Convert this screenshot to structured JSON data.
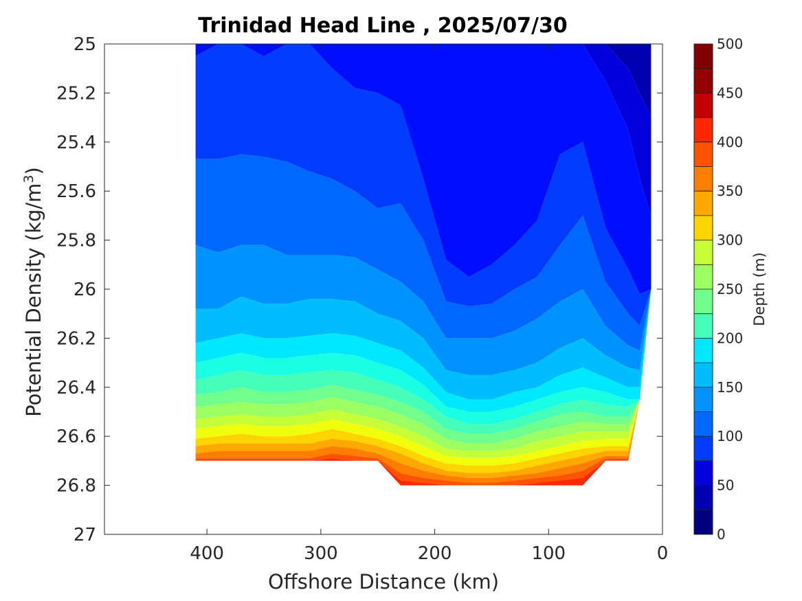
{
  "chart_data": {
    "type": "contour",
    "title": "Trinidad Head Line , 2025/07/30",
    "xlabel": "Offshore Distance (km)",
    "ylabel_main": "Potential Density (kg/m",
    "ylabel_sup": "3",
    "ylabel_close": ")",
    "xlim": [
      490,
      0
    ],
    "xticks": [
      400,
      300,
      200,
      100,
      0
    ],
    "xtick_labels": [
      "400",
      "300",
      "200",
      "100",
      "0"
    ],
    "ylim": [
      25,
      27
    ],
    "y_reversed": true,
    "yticks": [
      25,
      25.2,
      25.4,
      25.6,
      25.8,
      26,
      26.2,
      26.4,
      26.6,
      26.8,
      27
    ],
    "ytick_labels": [
      "25",
      "25.2",
      "25.4",
      "25.6",
      "25.8",
      "26",
      "26.2",
      "26.4",
      "26.6",
      "26.8",
      "27"
    ],
    "colorbar": {
      "label": "Depth (m)",
      "range": [
        0,
        500
      ],
      "ticks": [
        0,
        50,
        100,
        150,
        200,
        250,
        300,
        350,
        400,
        450,
        500
      ],
      "tick_labels": [
        "0",
        "50",
        "100",
        "150",
        "200",
        "250",
        "300",
        "350",
        "400",
        "450",
        "500"
      ],
      "levels": 20,
      "colormap": "jet"
    },
    "grid": false,
    "level_colors": [
      "#00007f",
      "#0000ae",
      "#0000dc",
      "#000dff",
      "#003cff",
      "#0067ff",
      "#0092ff",
      "#00bdff",
      "#00e8ff",
      "#1affe3",
      "#45ffb8",
      "#70ff8d",
      "#9bff62",
      "#c6ff37",
      "#f1ff0c",
      "#ffd400",
      "#ffa900",
      "#ff7e00",
      "#ff5300",
      "#ff2800",
      "#ef0000",
      "#c10000",
      "#930000",
      "#7f0000"
    ],
    "profile_x": [
      410,
      390,
      370,
      350,
      330,
      310,
      290,
      270,
      250,
      230,
      210,
      190,
      170,
      150,
      130,
      110,
      90,
      70,
      50,
      30,
      20,
      10
    ],
    "bottom_density": [
      26.7,
      26.7,
      26.7,
      26.7,
      26.7,
      26.7,
      26.7,
      26.7,
      26.7,
      26.8,
      26.8,
      26.8,
      26.8,
      26.8,
      26.8,
      26.8,
      26.8,
      26.8,
      26.7,
      26.7,
      26.45,
      26.0
    ],
    "isopycnal_depths": {
      "levels": [
        50,
        75,
        100,
        125,
        150,
        175,
        200,
        225,
        250,
        275,
        300,
        325,
        350,
        375,
        400,
        425,
        450,
        475
      ],
      "density": [
        [
          25.0,
          25.0,
          25.0,
          25.0,
          25.0,
          25.0,
          25.0,
          25.0,
          25.0,
          25.05,
          25.05,
          25.3,
          25.38,
          25.32,
          25.2,
          25.1,
          25.0,
          25.0,
          25.0,
          25.1,
          25.2,
          25.3
        ],
        [
          25.0,
          25.0,
          25.0,
          25.0,
          25.0,
          25.0,
          25.0,
          25.0,
          25.0,
          25.0,
          25.0,
          25.0,
          25.0,
          25.0,
          25.0,
          25.0,
          25.0,
          25.0,
          25.15,
          25.35,
          25.55,
          25.7
        ],
        [
          25.05,
          25.0,
          24.98,
          25.05,
          25.0,
          24.98,
          25.1,
          25.18,
          25.2,
          25.25,
          25.55,
          25.88,
          25.95,
          25.9,
          25.82,
          25.72,
          25.45,
          25.4,
          25.75,
          25.92,
          26.02,
          26.05
        ],
        [
          25.47,
          25.47,
          25.45,
          25.46,
          25.48,
          25.52,
          25.55,
          25.6,
          25.67,
          25.65,
          25.8,
          26.05,
          26.07,
          26.06,
          26.0,
          25.95,
          25.82,
          25.7,
          25.97,
          26.1,
          26.15,
          26.15
        ],
        [
          25.82,
          25.85,
          25.82,
          25.82,
          25.86,
          25.86,
          25.86,
          25.87,
          25.92,
          25.97,
          26.05,
          26.2,
          26.2,
          26.2,
          26.17,
          26.12,
          26.05,
          26.0,
          26.15,
          26.23,
          26.25,
          26.25
        ],
        [
          26.08,
          26.08,
          26.03,
          26.06,
          26.06,
          26.04,
          26.04,
          26.05,
          26.1,
          26.13,
          26.2,
          26.33,
          26.35,
          26.35,
          26.33,
          26.3,
          26.24,
          26.2,
          26.27,
          26.32,
          26.33,
          26.33
        ],
        [
          26.22,
          26.2,
          26.18,
          26.2,
          26.2,
          26.19,
          26.18,
          26.19,
          26.22,
          26.25,
          26.32,
          26.42,
          26.45,
          26.45,
          26.42,
          26.4,
          26.35,
          26.32,
          26.36,
          26.4,
          26.4,
          26.4
        ],
        [
          26.3,
          26.28,
          26.26,
          26.28,
          26.28,
          26.27,
          26.26,
          26.27,
          26.3,
          26.33,
          26.39,
          26.48,
          26.5,
          26.5,
          26.48,
          26.45,
          26.42,
          26.4,
          26.42,
          26.45,
          26.45,
          26.45
        ],
        [
          26.37,
          26.35,
          26.33,
          26.35,
          26.35,
          26.34,
          26.33,
          26.34,
          26.37,
          26.4,
          26.45,
          26.52,
          26.55,
          26.55,
          26.53,
          26.5,
          26.47,
          26.45,
          26.47,
          26.48,
          26.48,
          26.48
        ],
        [
          26.43,
          26.42,
          26.4,
          26.42,
          26.42,
          26.41,
          26.39,
          26.41,
          26.43,
          26.46,
          26.5,
          26.57,
          26.59,
          26.59,
          26.57,
          26.54,
          26.51,
          26.5,
          26.52,
          26.52,
          26.52,
          26.52
        ],
        [
          26.48,
          26.47,
          26.46,
          26.47,
          26.47,
          26.46,
          26.44,
          26.46,
          26.48,
          26.51,
          26.55,
          26.61,
          26.63,
          26.63,
          26.61,
          26.58,
          26.56,
          26.54,
          26.55,
          26.55,
          26.55,
          26.55
        ],
        [
          26.53,
          26.52,
          26.51,
          26.52,
          26.52,
          26.51,
          26.49,
          26.51,
          26.53,
          26.56,
          26.6,
          26.65,
          26.66,
          26.66,
          26.65,
          26.62,
          26.6,
          26.58,
          26.58,
          26.58,
          26.58,
          26.58
        ],
        [
          26.57,
          26.56,
          26.55,
          26.56,
          26.56,
          26.55,
          26.53,
          26.55,
          26.57,
          26.6,
          26.64,
          26.68,
          26.69,
          26.69,
          26.68,
          26.66,
          26.64,
          26.62,
          26.61,
          26.61,
          26.61,
          26.61
        ],
        [
          26.61,
          26.6,
          26.59,
          26.6,
          26.6,
          26.59,
          26.57,
          26.59,
          26.61,
          26.64,
          26.68,
          26.71,
          26.72,
          26.72,
          26.71,
          26.69,
          26.67,
          26.65,
          26.64,
          26.64,
          26.64,
          26.64
        ],
        [
          26.64,
          26.63,
          26.63,
          26.63,
          26.63,
          26.63,
          26.61,
          26.62,
          26.64,
          26.67,
          26.71,
          26.74,
          26.75,
          26.75,
          26.74,
          26.72,
          26.7,
          26.68,
          26.66,
          26.66,
          26.66,
          26.66
        ],
        [
          26.67,
          26.66,
          26.66,
          26.66,
          26.66,
          26.66,
          26.64,
          26.65,
          26.67,
          26.71,
          26.74,
          26.76,
          26.77,
          26.77,
          26.76,
          26.75,
          26.73,
          26.71,
          26.68,
          26.68,
          26.68,
          26.68
        ],
        [
          26.69,
          26.69,
          26.69,
          26.69,
          26.69,
          26.69,
          26.67,
          26.68,
          26.69,
          26.75,
          26.77,
          26.78,
          26.79,
          26.79,
          26.78,
          26.77,
          26.76,
          26.74,
          26.69,
          26.69,
          26.69,
          26.69
        ],
        [
          26.7,
          26.7,
          26.7,
          26.7,
          26.7,
          26.7,
          26.69,
          26.7,
          26.7,
          26.78,
          26.79,
          26.8,
          26.8,
          26.8,
          26.8,
          26.79,
          26.78,
          26.77,
          26.7,
          26.7,
          26.7,
          26.7
        ]
      ]
    }
  }
}
